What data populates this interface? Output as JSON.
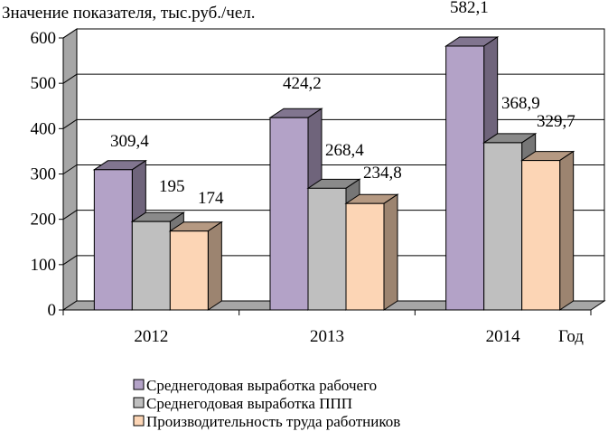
{
  "chart_data": {
    "type": "bar",
    "title": "",
    "ylabel": "Значение показателя, тыс.руб./чел.",
    "xlabel": "Год",
    "categories": [
      "2012",
      "2013",
      "2014"
    ],
    "ylim": [
      0,
      600
    ],
    "yticks": [
      "0",
      "100",
      "200",
      "300",
      "400",
      "500",
      "600"
    ],
    "grid": true,
    "legend_position": "bottom",
    "series": [
      {
        "name": "Среднегодовая выработка рабочего",
        "values": [
          309.4,
          424.2,
          582.1
        ],
        "labels": [
          "309,4",
          "424,2",
          "582,1"
        ],
        "color": "#B3A2C7"
      },
      {
        "name": "Среднегодовая выработка ППП",
        "values": [
          195,
          268.4,
          368.9
        ],
        "labels": [
          "195",
          "268,4",
          "368,9"
        ],
        "color": "#BFBFBF"
      },
      {
        "name": "Производительность труда работников",
        "values": [
          174,
          234.8,
          329.7
        ],
        "labels": [
          "174",
          "234,8",
          "329,7"
        ],
        "color": "#FCD5B5"
      }
    ]
  }
}
